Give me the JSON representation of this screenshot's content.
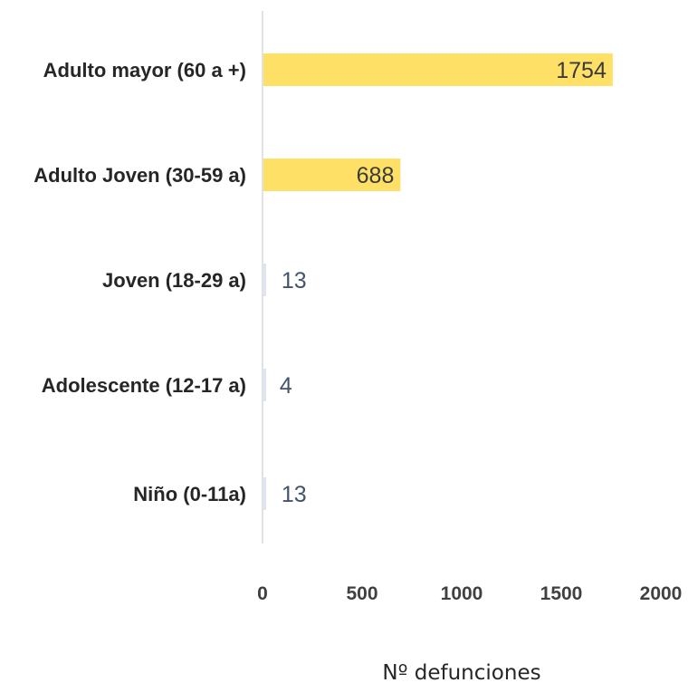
{
  "chart_data": {
    "type": "bar",
    "orientation": "horizontal",
    "categories": [
      "Adulto mayor (60 a +)",
      "Adulto Joven (30-59 a)",
      "Joven (18-29 a)",
      "Adolescente (12-17 a)",
      "Niño (0-11a)"
    ],
    "values": [
      1754,
      688,
      13,
      4,
      13
    ],
    "data_labels": [
      "1754",
      "688",
      "13",
      "4",
      "13"
    ],
    "xlabel": "Nº defunciones",
    "ylabel": "",
    "title": "",
    "xlim": [
      0,
      2000
    ],
    "xticks": [
      "0",
      "500",
      "1000",
      "1500",
      "2000"
    ],
    "grid": false,
    "bar_color": "#FFE066",
    "small_bar_color": "#DCE6F2",
    "label_color_inside": "#3A3A3A",
    "label_color_outside": "#44546A"
  }
}
